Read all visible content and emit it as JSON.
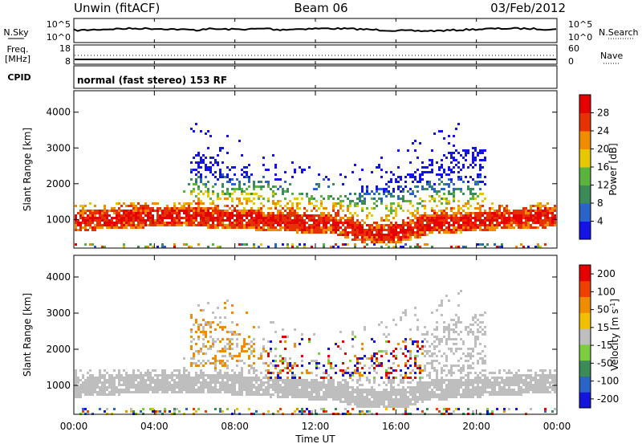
{
  "header": {
    "station": "Unwin (fitACF)",
    "beam": "Beam 06",
    "date": "03/Feb/2012"
  },
  "panels": {
    "nsky": {
      "left_label": "N.Sky",
      "left_ticks": [
        "10^5",
        "10^0"
      ],
      "right_ticks": [
        "10^5",
        "10^0"
      ],
      "right_label": "N.Search"
    },
    "freq": {
      "left_label_1": "Freq.",
      "left_label_2": "[MHz]",
      "left_ticks": [
        "18",
        "8"
      ],
      "right_ticks": [
        "60",
        "0"
      ],
      "right_label": "Nave"
    },
    "cpid": {
      "left_label": "CPID",
      "text": "normal (fast stereo) 153 RF"
    }
  },
  "chart_data": [
    {
      "type": "heatmap",
      "name": "power",
      "ylabel": "Slant Range [km]",
      "xlabel": "Time UT",
      "ylim": [
        200,
        4600
      ],
      "yticks": [
        "1000",
        "2000",
        "3000",
        "4000"
      ],
      "xticks": [
        "00:00",
        "04:00",
        "08:00",
        "12:00",
        "16:00",
        "20:00",
        "00:00"
      ],
      "colorbar": {
        "label": "Power [dB]",
        "ticks": [
          "4",
          "8",
          "12",
          "16",
          "20",
          "24",
          "28"
        ],
        "colors": [
          "#1414e6",
          "#2a64c8",
          "#3c8c5a",
          "#5ab43c",
          "#e6c800",
          "#f08c00",
          "#e63200",
          "#e60000"
        ]
      }
    },
    {
      "type": "heatmap",
      "name": "velocity",
      "ylabel": "Slant Range [km]",
      "xlabel": "Time UT",
      "ylim": [
        200,
        4600
      ],
      "yticks": [
        "1000",
        "2000",
        "3000",
        "4000"
      ],
      "xticks": [
        "00:00",
        "04:00",
        "08:00",
        "12:00",
        "16:00",
        "20:00",
        "00:00"
      ],
      "colorbar": {
        "label": "Velocity [m s^-1]",
        "ticks": [
          "200",
          "100",
          "50",
          "15",
          "-15",
          "-50",
          "-100",
          "-200"
        ],
        "colors": [
          "#1414dc",
          "#2a64c8",
          "#3c8c5a",
          "#7ccc40",
          "#bebebe",
          "#f0c000",
          "#f08c00",
          "#f04000",
          "#e60000"
        ]
      }
    }
  ],
  "colors": {
    "ground_scatter": "#bebebe",
    "axis": "#000000"
  }
}
